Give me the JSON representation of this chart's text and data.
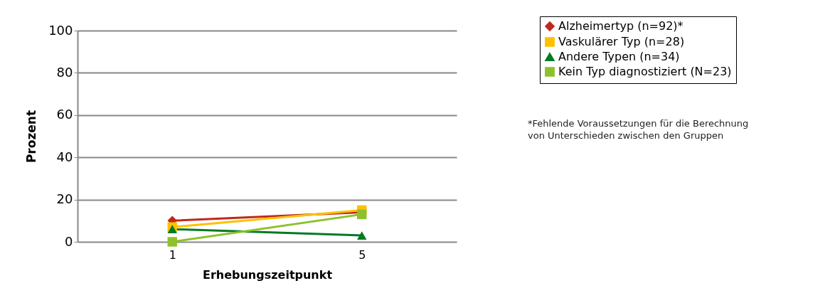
{
  "chart_data": {
    "type": "line",
    "categories": [
      "1",
      "5"
    ],
    "xlabel": "Erhebungszeitpunkt",
    "ylabel": "Prozent",
    "ylim": [
      0,
      100
    ],
    "yticks": [
      0,
      20,
      40,
      60,
      80,
      100
    ],
    "grid": "y",
    "legend": "top right",
    "series": [
      {
        "name": "Alzheimertyp (n=92)*",
        "color": "#c0281b",
        "marker": "diamond",
        "values": [
          10,
          14
        ]
      },
      {
        "name": "Vaskulärer Typ (n=28)",
        "color": "#ffc000",
        "marker": "square",
        "values": [
          7,
          15
        ]
      },
      {
        "name": "Andere Typen (n=34)",
        "color": "#047a24",
        "marker": "triangle",
        "values": [
          6,
          3
        ]
      },
      {
        "name": "Kein Typ diagnostiziert (N=23)",
        "color": "#8dc12b",
        "marker": "square",
        "values": [
          0,
          13
        ]
      }
    ],
    "annotations": [
      "*Fehlende Voraussetzungen für die Berechnung\n von Unterschieden zwischen den Gruppen"
    ]
  }
}
